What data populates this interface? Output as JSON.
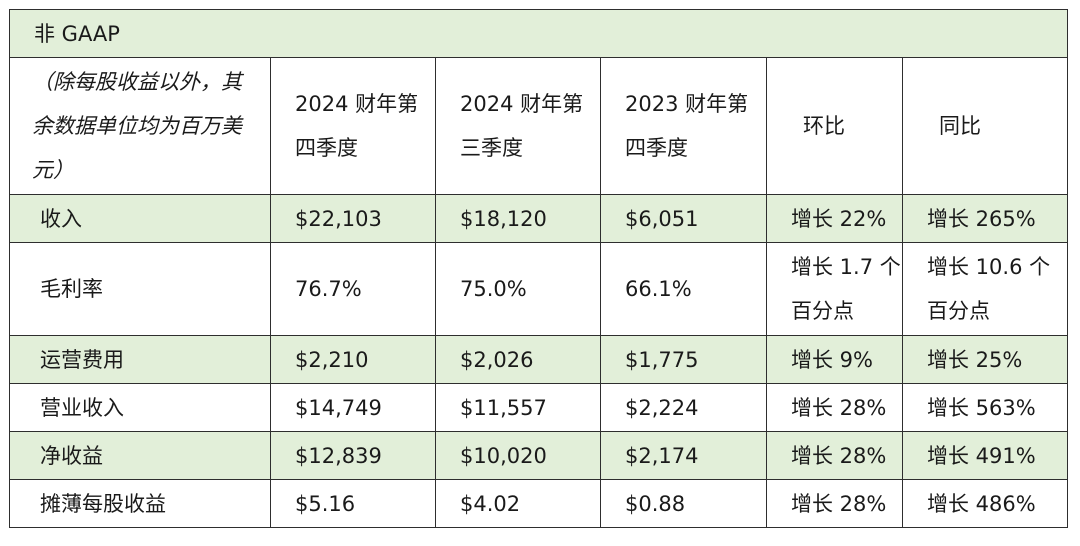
{
  "table": {
    "title": "非 GAAP",
    "header": {
      "note": "（除每股收益以外，其余数据单位均为百万美元）",
      "columns": [
        "2024 财年第四季度",
        "2024 财年第三季度",
        "2023 财年第四季度",
        "环比",
        "同比"
      ]
    },
    "rows": [
      {
        "label": "收入",
        "values": [
          "$22,103",
          "$18,120",
          "$6,051",
          "增长 22%",
          "增长 265%"
        ]
      },
      {
        "label": "毛利率",
        "values": [
          "76.7%",
          "75.0%",
          "66.1%",
          "增长 1.7 个百分点",
          "增长 10.6 个百分点"
        ]
      },
      {
        "label": "运营费用",
        "values": [
          "$2,210",
          "$2,026",
          "$1,775",
          "增长 9%",
          "增长 25%"
        ]
      },
      {
        "label": "营业收入",
        "values": [
          "$14,749",
          "$11,557",
          "$2,224",
          "增长 28%",
          "增长 563%"
        ]
      },
      {
        "label": "净收益",
        "values": [
          "$12,839",
          "$10,020",
          "$2,174",
          "增长 28%",
          "增长 491%"
        ]
      },
      {
        "label": "摊薄每股收益",
        "values": [
          "$5.16",
          "$4.02",
          "$0.88",
          "增长 28%",
          "增长 486%"
        ]
      }
    ]
  },
  "colors": {
    "shade": "#e2efd9",
    "border": "#2e2e2e"
  }
}
